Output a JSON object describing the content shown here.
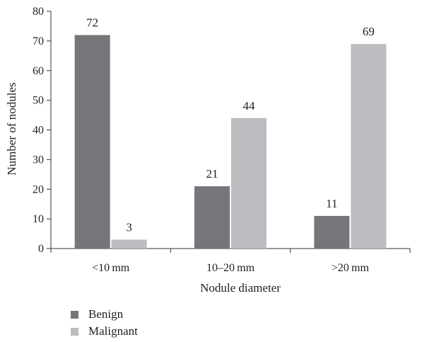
{
  "chart_data": {
    "type": "bar",
    "title": "",
    "categories": [
      "<10 mm",
      "10–20 mm",
      ">20 mm"
    ],
    "series": [
      {
        "name": "Benign",
        "values": [
          72,
          21,
          11
        ],
        "color": "#76767a"
      },
      {
        "name": "Malignant",
        "values": [
          3,
          44,
          69
        ],
        "color": "#bcbdc0"
      }
    ],
    "xlabel": "Nodule diameter",
    "ylabel": "Number of nodules",
    "ylim": [
      0,
      80
    ],
    "yticks": [
      0,
      10,
      20,
      30,
      40,
      50,
      60,
      70,
      80
    ],
    "grid": false,
    "legend_position": "bottom-left",
    "data_labels": true
  }
}
